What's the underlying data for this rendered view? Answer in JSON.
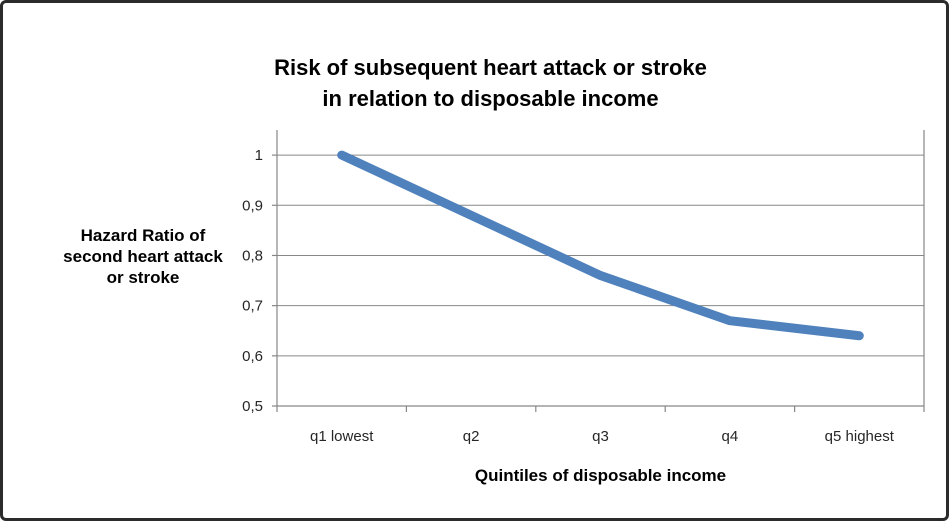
{
  "chart_data": {
    "type": "line",
    "title": "Risk of subsequent heart attack or stroke\nin relation to disposable income",
    "ylabel": "Hazard Ratio of\nsecond heart attack\nor stroke",
    "xlabel": "Quintiles of disposable income",
    "categories": [
      "q1 lowest",
      "q2",
      "q3",
      "q4",
      "q5 highest"
    ],
    "series": [
      {
        "name": "Hazard Ratio",
        "values": [
          1.0,
          0.88,
          0.76,
          0.67,
          0.64
        ]
      }
    ],
    "y_ticks": [
      {
        "value": 1.0,
        "label": "1"
      },
      {
        "value": 0.9,
        "label": "0,9"
      },
      {
        "value": 0.8,
        "label": "0,8"
      },
      {
        "value": 0.7,
        "label": "0,7"
      },
      {
        "value": 0.6,
        "label": "0,6"
      },
      {
        "value": 0.5,
        "label": "0,5"
      }
    ],
    "ylim": [
      0.5,
      1.05
    ],
    "grid": true,
    "legend": "none",
    "decimal_separator": ",",
    "colors": {
      "line": "#4F81BD",
      "grid": "#878787",
      "axis": "#878787",
      "tick_text": "#262626",
      "title_text": "#000000",
      "frame_border": "#2b2b2b",
      "background": "#ffffff"
    }
  }
}
